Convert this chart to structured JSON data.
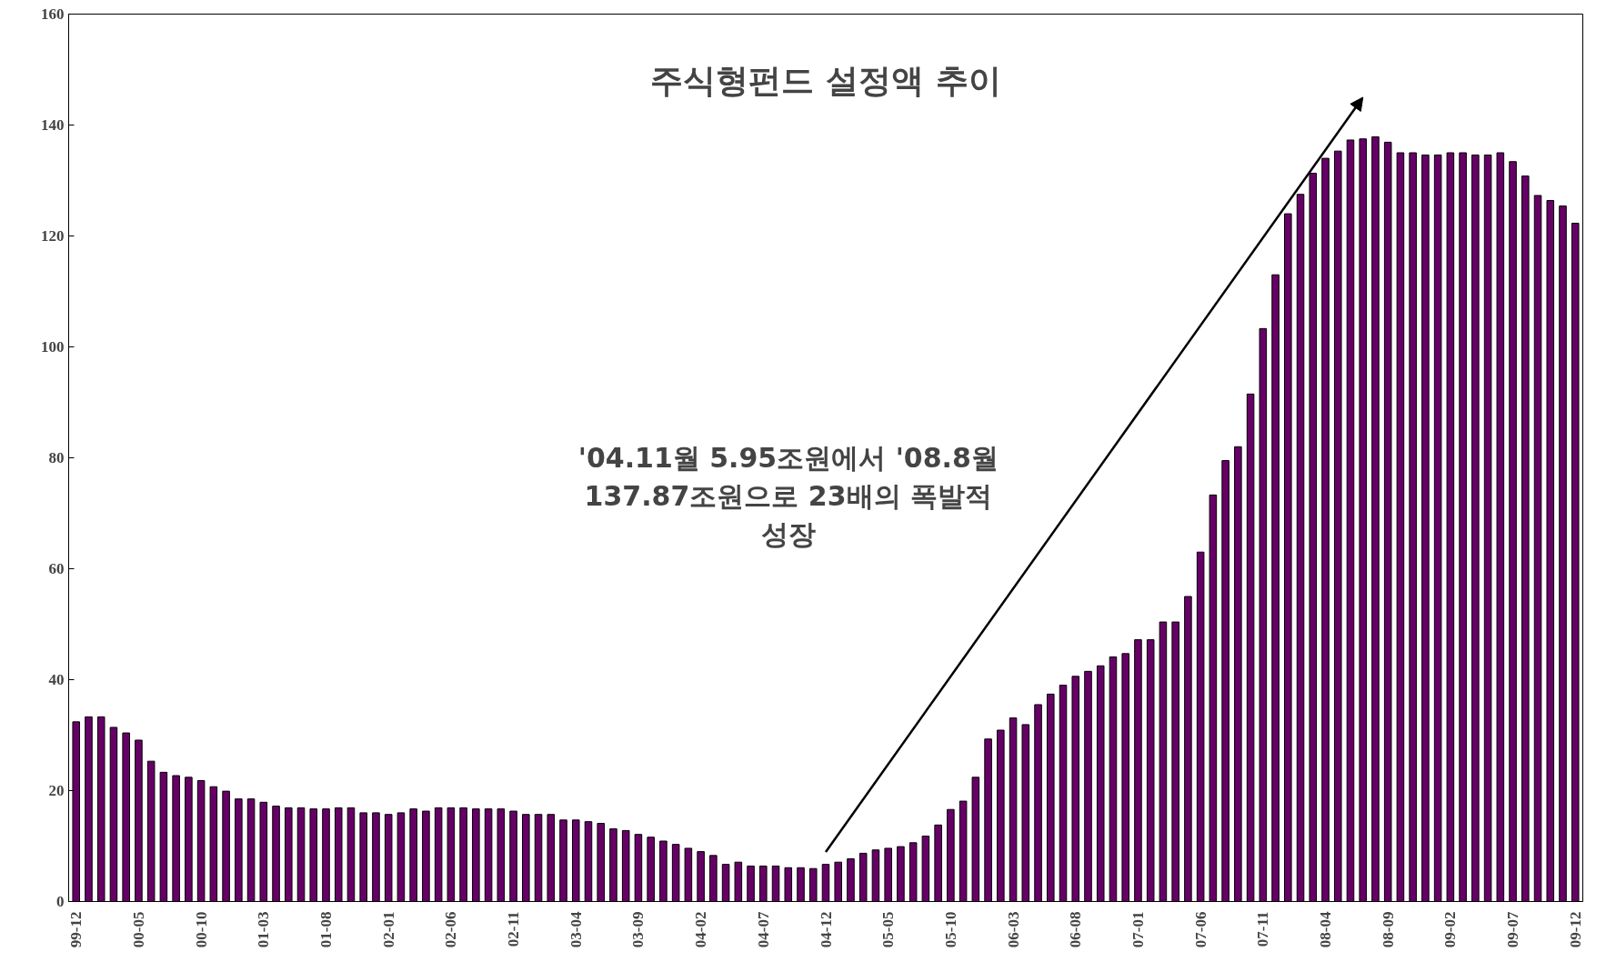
{
  "chart_data": {
    "type": "bar",
    "title": "주식형펀드 설정액 추이",
    "categories": [
      "99-12",
      null,
      null,
      null,
      null,
      "00-05",
      null,
      null,
      null,
      null,
      "00-10",
      null,
      null,
      null,
      null,
      "01-03",
      null,
      null,
      null,
      null,
      "01-08",
      null,
      null,
      null,
      null,
      "02-01",
      null,
      null,
      null,
      null,
      "02-06",
      null,
      null,
      null,
      null,
      "02-11",
      null,
      null,
      null,
      null,
      "03-04",
      null,
      null,
      null,
      null,
      "03-09",
      null,
      null,
      null,
      null,
      "04-02",
      null,
      null,
      null,
      null,
      "04-07",
      null,
      null,
      null,
      null,
      "04-12",
      null,
      null,
      null,
      null,
      "05-05",
      null,
      null,
      null,
      null,
      "05-10",
      null,
      null,
      null,
      null,
      "06-03",
      null,
      null,
      null,
      null,
      "06-08",
      null,
      null,
      null,
      null,
      "07-01",
      null,
      null,
      null,
      null,
      "07-06",
      null,
      null,
      null,
      null,
      "07-11",
      null,
      null,
      null,
      null,
      "08-04",
      null,
      null,
      null,
      null,
      "08-09",
      null,
      null,
      null,
      null,
      "09-02",
      null,
      null,
      null,
      null,
      "09-07",
      null,
      null,
      null,
      null,
      "09-12"
    ],
    "values": [
      32.4,
      33.3,
      33.3,
      31.4,
      30.4,
      29.1,
      25.3,
      23.3,
      22.7,
      22.4,
      21.8,
      20.7,
      19.9,
      18.5,
      18.5,
      17.9,
      17.2,
      16.9,
      16.9,
      16.7,
      16.7,
      16.9,
      16.9,
      16.0,
      16.0,
      15.7,
      16.0,
      16.7,
      16.3,
      16.9,
      16.9,
      16.9,
      16.7,
      16.7,
      16.7,
      16.3,
      15.7,
      15.7,
      15.7,
      14.7,
      14.7,
      14.4,
      14.1,
      13.1,
      12.8,
      12.1,
      11.6,
      10.9,
      10.3,
      9.6,
      9.0,
      8.3,
      6.7,
      7.1,
      6.4,
      6.4,
      6.4,
      6.1,
      6.1,
      5.95,
      6.7,
      7.1,
      7.7,
      8.7,
      9.3,
      9.6,
      9.9,
      10.6,
      11.8,
      13.8,
      16.6,
      18.1,
      22.4,
      29.3,
      30.9,
      33.1,
      31.9,
      35.5,
      37.4,
      39.0,
      40.6,
      41.5,
      42.5,
      44.1,
      44.7,
      47.2,
      47.2,
      50.4,
      50.4,
      55,
      63,
      73.3,
      79.5,
      82,
      91.5,
      103.3,
      113,
      124,
      127.5,
      131.3,
      134,
      135.3,
      137.3,
      137.5,
      137.87,
      136.9,
      135.0,
      135.0,
      134.6,
      134.6,
      135.0,
      135.0,
      134.6,
      134.6,
      135.0,
      133.4,
      130.8,
      127.3,
      126.4,
      125.4,
      122.3
    ],
    "color": "#660066",
    "ylim": [
      0,
      160
    ],
    "yticks": [
      0,
      20,
      40,
      60,
      80,
      100,
      120,
      140,
      160
    ],
    "grid": false,
    "annotations": [
      "'04.11월 5.95조원에서 '08.8월\n137.87조원으로 23배의 폭발적\n성장"
    ]
  }
}
